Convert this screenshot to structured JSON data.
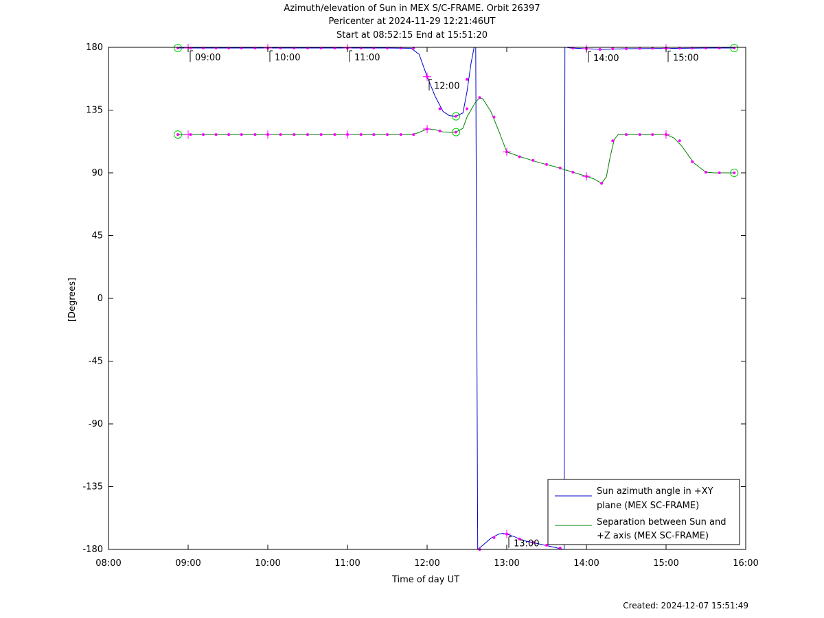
{
  "chart_data": {
    "type": "line",
    "title": "Azimuth/elevation of Sun in MEX S/C-FRAME.  Orbit 26397",
    "subtitle_lines": [
      "Pericenter at 2024-11-29 12:21:46UT",
      "Start at 08:52:15 End at 15:51:20"
    ],
    "xlabel": "Time of day UT",
    "ylabel": "[Degrees]",
    "xlim": [
      8.0,
      16.0
    ],
    "ylim": [
      -180,
      180
    ],
    "x_ticks": [
      8,
      9,
      10,
      11,
      12,
      13,
      14,
      15,
      16
    ],
    "x_tick_labels": [
      "08:00",
      "09:00",
      "10:00",
      "11:00",
      "12:00",
      "13:00",
      "14:00",
      "15:00",
      "16:00"
    ],
    "y_ticks": [
      180,
      135,
      90,
      45,
      0,
      -45,
      -90,
      -135,
      -180
    ],
    "y_tick_labels": [
      "180",
      "135",
      "90",
      "45",
      "0",
      "-45",
      "-90",
      "-135",
      "-180"
    ],
    "grid": false,
    "legend_position": "bottom-right",
    "series": [
      {
        "name": "Sun azimuth angle in +XY plane (MEX SC-FRAME)",
        "legend_lines": [
          "Sun azimuth angle in +XY",
          "plane (MEX SC-FRAME)"
        ],
        "color": "#0000cc",
        "segments": [
          [
            [
              8.871,
              179.5
            ],
            [
              9.0,
              179.5
            ],
            [
              9.5,
              179.5
            ],
            [
              10.0,
              179.5
            ],
            [
              10.5,
              179.5
            ],
            [
              11.0,
              179.5
            ],
            [
              11.5,
              179.5
            ],
            [
              11.8,
              179.3
            ],
            [
              11.9,
              175
            ],
            [
              12.0,
              159
            ],
            [
              12.1,
              145
            ],
            [
              12.2,
              134
            ],
            [
              12.28,
              131
            ],
            [
              12.36,
              130.5
            ],
            [
              12.45,
              133
            ],
            [
              12.5,
              148
            ],
            [
              12.55,
              168
            ],
            [
              12.59,
              180
            ]
          ],
          [
            [
              12.61,
              180
            ],
            [
              12.635,
              -180
            ]
          ],
          [
            [
              12.635,
              -180
            ],
            [
              12.7,
              -177
            ],
            [
              12.8,
              -172
            ],
            [
              12.9,
              -169
            ],
            [
              12.95,
              -168.5
            ],
            [
              13.0,
              -169
            ],
            [
              13.1,
              -171
            ],
            [
              13.2,
              -173.5
            ],
            [
              13.4,
              -176
            ],
            [
              13.6,
              -178.5
            ],
            [
              13.71,
              -180
            ]
          ],
          [
            [
              13.72,
              -180
            ],
            [
              13.73,
              180
            ]
          ],
          [
            [
              13.75,
              180
            ],
            [
              13.8,
              179.5
            ],
            [
              14.0,
              179
            ],
            [
              14.2,
              178.5
            ],
            [
              14.5,
              179
            ],
            [
              15.0,
              179.2
            ],
            [
              15.3,
              179.4
            ],
            [
              15.6,
              179.5
            ],
            [
              15.856,
              179.5
            ]
          ]
        ]
      },
      {
        "name": "Separation between Sun and +Z axis (MEX SC-FRAME)",
        "legend_lines": [
          "Separation between Sun and",
          "+Z axis (MEX SC-FRAME)"
        ],
        "color": "#008000",
        "segments": [
          [
            [
              8.871,
              117.5
            ],
            [
              9.0,
              117.5
            ],
            [
              9.5,
              117.5
            ],
            [
              10.0,
              117.5
            ],
            [
              10.5,
              117.5
            ],
            [
              11.0,
              117.5
            ],
            [
              11.5,
              117.5
            ],
            [
              11.82,
              117.5
            ],
            [
              11.9,
              119
            ],
            [
              12.0,
              121.5
            ],
            [
              12.1,
              121
            ],
            [
              12.2,
              119.3
            ],
            [
              12.3,
              119
            ],
            [
              12.36,
              119.2
            ],
            [
              12.45,
              122
            ],
            [
              12.5,
              130
            ],
            [
              12.6,
              140
            ],
            [
              12.66,
              144
            ],
            [
              12.7,
              143
            ],
            [
              12.8,
              134
            ],
            [
              12.9,
              120
            ],
            [
              13.0,
              105
            ],
            [
              13.2,
              101
            ],
            [
              13.4,
              97.5
            ],
            [
              13.6,
              94.5
            ],
            [
              13.8,
              91
            ],
            [
              14.0,
              87.5
            ],
            [
              14.1,
              85.5
            ],
            [
              14.19,
              82.5
            ],
            [
              14.25,
              87
            ],
            [
              14.3,
              102
            ],
            [
              14.35,
              114
            ],
            [
              14.4,
              117.5
            ],
            [
              14.6,
              117.5
            ],
            [
              14.8,
              117.5
            ],
            [
              15.0,
              117.5
            ],
            [
              15.1,
              115
            ],
            [
              15.2,
              109
            ],
            [
              15.35,
              97
            ],
            [
              15.5,
              90.5
            ],
            [
              15.6,
              90
            ],
            [
              15.856,
              90
            ]
          ]
        ]
      }
    ],
    "markers": [
      {
        "x": 8.871,
        "y": 179.5
      },
      {
        "x": 9.03,
        "y": 179.5
      },
      {
        "x": 9.19,
        "y": 179.5
      },
      {
        "x": 9.35,
        "y": 179.5
      },
      {
        "x": 9.51,
        "y": 179.5
      },
      {
        "x": 9.67,
        "y": 179.5
      },
      {
        "x": 9.84,
        "y": 179.5
      },
      {
        "x": 10.0,
        "y": 179.5
      },
      {
        "x": 10.16,
        "y": 179.5
      },
      {
        "x": 10.33,
        "y": 179.5
      },
      {
        "x": 10.5,
        "y": 179.5
      },
      {
        "x": 10.67,
        "y": 179.5
      },
      {
        "x": 10.84,
        "y": 179.5
      },
      {
        "x": 11.0,
        "y": 179.5
      },
      {
        "x": 11.17,
        "y": 179.5
      },
      {
        "x": 11.33,
        "y": 179.5
      },
      {
        "x": 11.5,
        "y": 179.5
      },
      {
        "x": 11.67,
        "y": 179.5
      },
      {
        "x": 11.83,
        "y": 179.5
      },
      {
        "x": 12.0,
        "y": 159
      },
      {
        "x": 12.16,
        "y": 136
      },
      {
        "x": 12.36,
        "y": 130.5
      },
      {
        "x": 12.5,
        "y": 157
      },
      {
        "x": 12.66,
        "y": -180
      },
      {
        "x": 12.84,
        "y": -171.5
      },
      {
        "x": 13.0,
        "y": -169
      },
      {
        "x": 13.16,
        "y": -172.5
      },
      {
        "x": 13.33,
        "y": -175
      },
      {
        "x": 13.5,
        "y": -177
      },
      {
        "x": 13.67,
        "y": -179
      },
      {
        "x": 13.83,
        "y": 179.5
      },
      {
        "x": 14.0,
        "y": 179
      },
      {
        "x": 14.17,
        "y": 178.5
      },
      {
        "x": 14.33,
        "y": 179
      },
      {
        "x": 14.5,
        "y": 179
      },
      {
        "x": 14.67,
        "y": 179.2
      },
      {
        "x": 14.83,
        "y": 179.3
      },
      {
        "x": 15.0,
        "y": 179.3
      },
      {
        "x": 15.17,
        "y": 179.4
      },
      {
        "x": 15.33,
        "y": 179.5
      },
      {
        "x": 15.5,
        "y": 179.5
      },
      {
        "x": 15.67,
        "y": 179.5
      },
      {
        "x": 15.856,
        "y": 179.5
      },
      {
        "x": 8.871,
        "y": 117.5
      },
      {
        "x": 9.03,
        "y": 117.5
      },
      {
        "x": 9.19,
        "y": 117.5
      },
      {
        "x": 9.35,
        "y": 117.5
      },
      {
        "x": 9.51,
        "y": 117.5
      },
      {
        "x": 9.67,
        "y": 117.5
      },
      {
        "x": 9.84,
        "y": 117.5
      },
      {
        "x": 10.0,
        "y": 117.5
      },
      {
        "x": 10.16,
        "y": 117.5
      },
      {
        "x": 10.33,
        "y": 117.5
      },
      {
        "x": 10.5,
        "y": 117.5
      },
      {
        "x": 10.67,
        "y": 117.5
      },
      {
        "x": 10.84,
        "y": 117.5
      },
      {
        "x": 11.0,
        "y": 117.5
      },
      {
        "x": 11.17,
        "y": 117.5
      },
      {
        "x": 11.33,
        "y": 117.5
      },
      {
        "x": 11.5,
        "y": 117.5
      },
      {
        "x": 11.67,
        "y": 117.5
      },
      {
        "x": 11.83,
        "y": 117.5
      },
      {
        "x": 12.0,
        "y": 121.5
      },
      {
        "x": 12.16,
        "y": 120
      },
      {
        "x": 12.36,
        "y": 119.2
      },
      {
        "x": 12.5,
        "y": 136
      },
      {
        "x": 12.66,
        "y": 144
      },
      {
        "x": 12.84,
        "y": 130
      },
      {
        "x": 13.0,
        "y": 105
      },
      {
        "x": 13.16,
        "y": 101.5
      },
      {
        "x": 13.33,
        "y": 99
      },
      {
        "x": 13.5,
        "y": 96
      },
      {
        "x": 13.67,
        "y": 93.5
      },
      {
        "x": 13.83,
        "y": 90.5
      },
      {
        "x": 14.0,
        "y": 87.5
      },
      {
        "x": 14.19,
        "y": 82.5
      },
      {
        "x": 14.33,
        "y": 113
      },
      {
        "x": 14.5,
        "y": 117.5
      },
      {
        "x": 14.67,
        "y": 117.5
      },
      {
        "x": 14.83,
        "y": 117.5
      },
      {
        "x": 15.0,
        "y": 117.5
      },
      {
        "x": 15.17,
        "y": 113
      },
      {
        "x": 15.33,
        "y": 98
      },
      {
        "x": 15.5,
        "y": 90.5
      },
      {
        "x": 15.67,
        "y": 90
      },
      {
        "x": 15.856,
        "y": 90
      }
    ],
    "start_end_circles": [
      {
        "x": 8.871,
        "y": 179.5
      },
      {
        "x": 8.871,
        "y": 117.5
      },
      {
        "x": 15.856,
        "y": 179.5
      },
      {
        "x": 15.856,
        "y": 90
      },
      {
        "x": 12.363,
        "y": 130.5
      },
      {
        "x": 12.363,
        "y": 119.2
      }
    ],
    "crosses": [
      {
        "x": 9.0,
        "y": 179.5
      },
      {
        "x": 10.0,
        "y": 179.5
      },
      {
        "x": 11.0,
        "y": 179.5
      },
      {
        "x": 12.0,
        "y": 159
      },
      {
        "x": 13.0,
        "y": -169
      },
      {
        "x": 14.0,
        "y": 179
      },
      {
        "x": 15.0,
        "y": 179.3
      },
      {
        "x": 9.0,
        "y": 117.5
      },
      {
        "x": 10.0,
        "y": 117.5
      },
      {
        "x": 11.0,
        "y": 117.5
      },
      {
        "x": 12.0,
        "y": 121.5
      },
      {
        "x": 13.0,
        "y": 105
      },
      {
        "x": 14.0,
        "y": 87.5
      },
      {
        "x": 15.0,
        "y": 117.5
      }
    ],
    "hour_annotations": [
      {
        "label": "09:00",
        "x": 9.0,
        "y": 179.5
      },
      {
        "label": "10:00",
        "x": 10.0,
        "y": 179.5
      },
      {
        "label": "11:00",
        "x": 11.0,
        "y": 179.5
      },
      {
        "label": "12:00",
        "x": 12.0,
        "y": 159
      },
      {
        "label": "13:00",
        "x": 13.0,
        "y": -169
      },
      {
        "label": "14:00",
        "x": 14.0,
        "y": 179
      },
      {
        "label": "15:00",
        "x": 15.0,
        "y": 179.3
      }
    ],
    "colors": {
      "azimuth": "#0000cc",
      "separation": "#008000",
      "marker": "#ff00ff",
      "circle": "#00cc00"
    }
  },
  "footer": {
    "created": "Created: 2024-12-07 15:51:49"
  }
}
